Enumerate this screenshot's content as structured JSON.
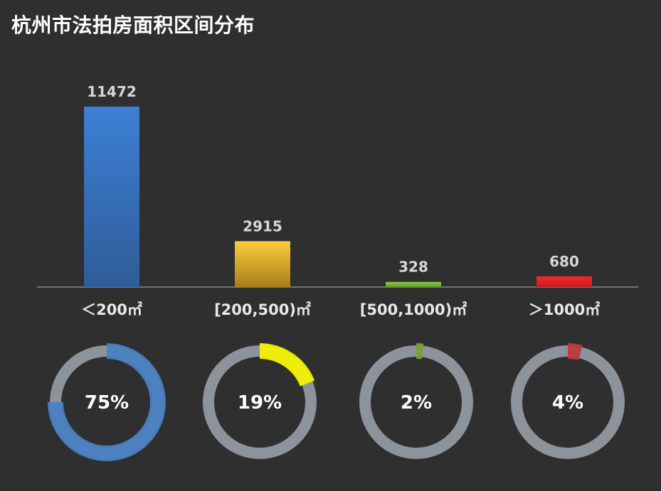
{
  "title": "杭州市法拍房面积区间分布",
  "chart_data": [
    {
      "type": "bar",
      "title": "杭州市法拍房面积区间分布",
      "categories": [
        "＜200㎡",
        "[200,500)㎡",
        "[500,1000)㎡",
        "＞1000㎡"
      ],
      "values": [
        11472,
        2915,
        328,
        680
      ],
      "data_labels": [
        "11472",
        "2915",
        "328",
        "680"
      ],
      "colors": [
        "#3d7ccc",
        "#f5c431",
        "#7cba3b",
        "#e8262a"
      ],
      "grid": false,
      "legend": "none"
    },
    {
      "type": "pie",
      "style": "donut",
      "categories": [
        "＜200㎡",
        "[200,500)㎡",
        "[500,1000)㎡",
        "＞1000㎡"
      ],
      "values": [
        75,
        19,
        2,
        4
      ],
      "labels": [
        "75%",
        "19%",
        "2%",
        "4%"
      ],
      "colors": [
        "#4a7fc1",
        "#f3f205",
        "#76a034",
        "#c0393b"
      ],
      "track_color": "#8c939b"
    }
  ]
}
